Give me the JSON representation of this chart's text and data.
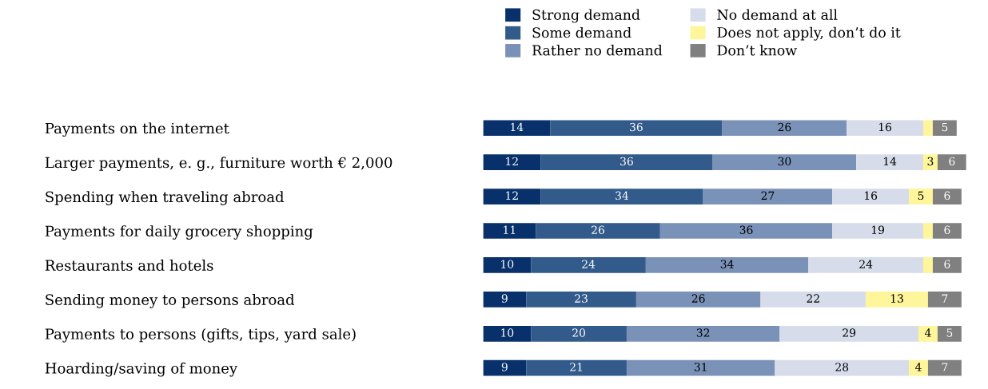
{
  "chart_data": {
    "type": "bar",
    "orientation": "horizontal",
    "stacked": true,
    "legend": "top",
    "categories": [
      "Payments on the internet",
      "Larger payments, e. g., furniture worth € 2,000",
      "Spending when traveling abroad",
      "Payments for daily grocery shopping",
      "Restaurants and hotels",
      "Sending money to persons abroad",
      "Payments to persons (gifts, tips, yard sale)",
      "Hoarding/saving of money"
    ],
    "series": [
      {
        "name": "Strong demand",
        "color": "#08306b",
        "values": [
          14,
          12,
          12,
          11,
          10,
          9,
          10,
          9
        ],
        "value_labels": [
          "14",
          "12",
          "12",
          "11",
          "10",
          "9",
          "10",
          "9"
        ]
      },
      {
        "name": "Some demand",
        "color": "#325a8a",
        "values": [
          36,
          36,
          34,
          26,
          24,
          23,
          20,
          21
        ],
        "value_labels": [
          "36",
          "36",
          "34",
          "26",
          "24",
          "23",
          "20",
          "21"
        ]
      },
      {
        "name": "Rather no demand",
        "color": "#7b92b8",
        "values": [
          26,
          30,
          27,
          36,
          34,
          26,
          32,
          31
        ],
        "value_labels": [
          "26",
          "30",
          "27",
          "36",
          "34",
          "26",
          "32",
          "31"
        ]
      },
      {
        "name": "No demand at all",
        "color": "#d6dcea",
        "values": [
          16,
          14,
          16,
          19,
          24,
          22,
          29,
          28
        ],
        "value_labels": [
          "16",
          "14",
          "16",
          "19",
          "24",
          "22",
          "29",
          "28"
        ]
      },
      {
        "name": "Does not apply, don’t do it",
        "color": "#fff59b",
        "values": [
          2,
          3,
          5,
          2,
          2,
          13,
          4,
          4
        ],
        "value_labels": [
          null,
          "3",
          "5",
          null,
          null,
          "13",
          "4",
          "4"
        ]
      },
      {
        "name": "Don’t know",
        "color": "#808080",
        "values": [
          5,
          6,
          6,
          6,
          6,
          7,
          5,
          7
        ],
        "value_labels": [
          "5",
          "6",
          "6",
          "6",
          "6",
          "7",
          "5",
          "7"
        ]
      }
    ]
  }
}
